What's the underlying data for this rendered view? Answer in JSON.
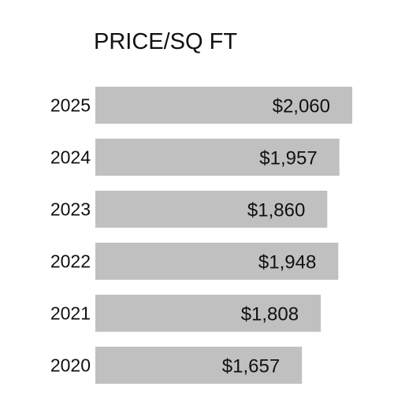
{
  "chart_data": {
    "type": "bar",
    "orientation": "horizontal",
    "title": "PRICE/SQ FT",
    "categories": [
      "2025",
      "2024",
      "2023",
      "2022",
      "2021",
      "2020"
    ],
    "values": [
      2060,
      1957,
      1860,
      1948,
      1808,
      1657
    ],
    "value_labels": [
      "$2,060",
      "$1,957",
      "$1,860",
      "$1,948",
      "$1,808",
      "$1,657"
    ],
    "bar_color": "#c0c0c0",
    "text_color": "#111111",
    "grid": false,
    "legend": "none",
    "xlabel": "",
    "ylabel": ""
  }
}
